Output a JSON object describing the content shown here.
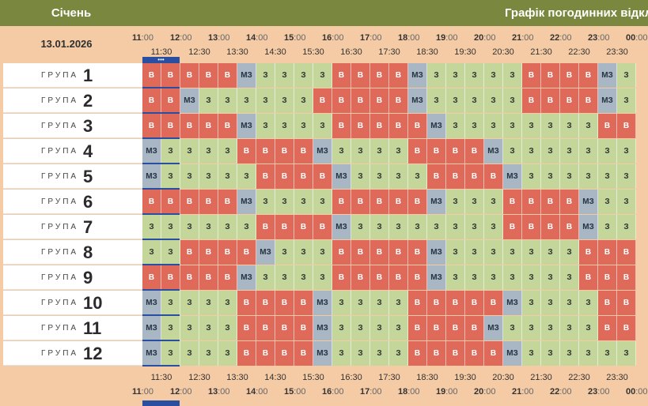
{
  "header": {
    "month": "Січень",
    "title": "Графік погодинних відкл"
  },
  "date": "13.01.2026",
  "current_marker": "•••",
  "group_label": "ГРУПА",
  "hours": [
    {
      "h": "11",
      "m": ":00"
    },
    {
      "h": "12",
      "m": ":00"
    },
    {
      "h": "13",
      "m": ":00"
    },
    {
      "h": "14",
      "m": ":00"
    },
    {
      "h": "15",
      "m": ":00"
    },
    {
      "h": "16",
      "m": ":00"
    },
    {
      "h": "17",
      "m": ":00"
    },
    {
      "h": "18",
      "m": ":00"
    },
    {
      "h": "19",
      "m": ":00"
    },
    {
      "h": "20",
      "m": ":00"
    },
    {
      "h": "21",
      "m": ":00"
    },
    {
      "h": "22",
      "m": ":00"
    },
    {
      "h": "23",
      "m": ":00"
    },
    {
      "h": "00",
      "m": ":00"
    }
  ],
  "halves": [
    "11:30",
    "12:30",
    "13:30",
    "14:30",
    "15:30",
    "16:30",
    "17:30",
    "18:30",
    "19:30",
    "20:30",
    "21:30",
    "22:30",
    "23:30"
  ],
  "status_text": {
    "V": "В",
    "Z": "З",
    "MZ": "МЗ"
  },
  "status_colors": {
    "V": "#e06a5a",
    "Z": "#c4d69a",
    "MZ": "#a9b6c3"
  },
  "groups": [
    {
      "num": "1",
      "cells": [
        "V",
        "V",
        "V",
        "V",
        "V",
        "MZ",
        "Z",
        "Z",
        "Z",
        "Z",
        "V",
        "V",
        "V",
        "V",
        "MZ",
        "Z",
        "Z",
        "Z",
        "Z",
        "Z",
        "V",
        "V",
        "V",
        "V",
        "MZ",
        "Z"
      ]
    },
    {
      "num": "2",
      "cells": [
        "V",
        "V",
        "MZ",
        "Z",
        "Z",
        "Z",
        "Z",
        "Z",
        "Z",
        "V",
        "V",
        "V",
        "V",
        "V",
        "MZ",
        "Z",
        "Z",
        "Z",
        "Z",
        "Z",
        "V",
        "V",
        "V",
        "V",
        "MZ",
        "Z"
      ]
    },
    {
      "num": "3",
      "cells": [
        "V",
        "V",
        "V",
        "V",
        "V",
        "MZ",
        "Z",
        "Z",
        "Z",
        "Z",
        "V",
        "V",
        "V",
        "V",
        "V",
        "MZ",
        "Z",
        "Z",
        "Z",
        "Z",
        "Z",
        "Z",
        "Z",
        "Z",
        "V",
        "V"
      ]
    },
    {
      "num": "4",
      "cells": [
        "MZ",
        "Z",
        "Z",
        "Z",
        "Z",
        "V",
        "V",
        "V",
        "V",
        "MZ",
        "Z",
        "Z",
        "Z",
        "Z",
        "V",
        "V",
        "V",
        "V",
        "MZ",
        "Z",
        "Z",
        "Z",
        "Z",
        "Z",
        "Z",
        "Z"
      ]
    },
    {
      "num": "5",
      "cells": [
        "MZ",
        "Z",
        "Z",
        "Z",
        "Z",
        "Z",
        "V",
        "V",
        "V",
        "V",
        "MZ",
        "Z",
        "Z",
        "Z",
        "Z",
        "V",
        "V",
        "V",
        "V",
        "MZ",
        "Z",
        "Z",
        "Z",
        "Z",
        "Z",
        "Z"
      ]
    },
    {
      "num": "6",
      "cells": [
        "V",
        "V",
        "V",
        "V",
        "V",
        "MZ",
        "Z",
        "Z",
        "Z",
        "Z",
        "V",
        "V",
        "V",
        "V",
        "V",
        "MZ",
        "Z",
        "Z",
        "Z",
        "V",
        "V",
        "V",
        "V",
        "MZ",
        "Z",
        "Z"
      ]
    },
    {
      "num": "7",
      "cells": [
        "Z",
        "Z",
        "Z",
        "Z",
        "Z",
        "Z",
        "V",
        "V",
        "V",
        "V",
        "MZ",
        "Z",
        "Z",
        "Z",
        "Z",
        "Z",
        "Z",
        "Z",
        "Z",
        "V",
        "V",
        "V",
        "V",
        "MZ",
        "Z",
        "Z"
      ]
    },
    {
      "num": "8",
      "cells": [
        "Z",
        "Z",
        "V",
        "V",
        "V",
        "V",
        "MZ",
        "Z",
        "Z",
        "Z",
        "V",
        "V",
        "V",
        "V",
        "V",
        "MZ",
        "Z",
        "Z",
        "Z",
        "Z",
        "Z",
        "Z",
        "Z",
        "V",
        "V",
        "V"
      ]
    },
    {
      "num": "9",
      "cells": [
        "V",
        "V",
        "V",
        "V",
        "V",
        "MZ",
        "Z",
        "Z",
        "Z",
        "Z",
        "V",
        "V",
        "V",
        "V",
        "V",
        "MZ",
        "Z",
        "Z",
        "Z",
        "Z",
        "Z",
        "Z",
        "Z",
        "V",
        "V",
        "V"
      ]
    },
    {
      "num": "10",
      "cells": [
        "MZ",
        "Z",
        "Z",
        "Z",
        "Z",
        "V",
        "V",
        "V",
        "V",
        "MZ",
        "Z",
        "Z",
        "Z",
        "Z",
        "V",
        "V",
        "V",
        "V",
        "V",
        "MZ",
        "Z",
        "Z",
        "Z",
        "Z",
        "V",
        "V"
      ]
    },
    {
      "num": "11",
      "cells": [
        "MZ",
        "Z",
        "Z",
        "Z",
        "Z",
        "V",
        "V",
        "V",
        "V",
        "MZ",
        "Z",
        "Z",
        "Z",
        "Z",
        "V",
        "V",
        "V",
        "V",
        "MZ",
        "Z",
        "Z",
        "Z",
        "Z",
        "Z",
        "V",
        "V"
      ]
    },
    {
      "num": "12",
      "cells": [
        "MZ",
        "Z",
        "Z",
        "Z",
        "Z",
        "V",
        "V",
        "V",
        "V",
        "MZ",
        "Z",
        "Z",
        "Z",
        "Z",
        "V",
        "V",
        "V",
        "V",
        "V",
        "MZ",
        "Z",
        "Z",
        "Z",
        "Z",
        "Z",
        "Z"
      ]
    }
  ]
}
